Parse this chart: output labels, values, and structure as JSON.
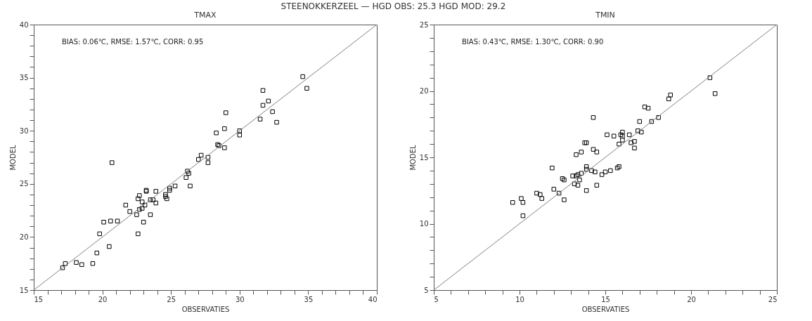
{
  "chart_data": [
    {
      "type": "scatter",
      "title": "STEENOKKERZEEL — HGD OBS: 25.3 HGD MOD: 29.2",
      "subtitle": "TMAX",
      "xlabel": "OBSERVATIES",
      "ylabel": "MODEL",
      "annotations": [
        "BIAS: 0.06℃, RMSE: 1.57℃, CORR: 0.95"
      ],
      "marker": "square",
      "grid": false,
      "xlim": [
        15,
        40
      ],
      "ylim": [
        15,
        40
      ],
      "xticks": [
        15,
        {
          "value": 16,
          "label": null
        },
        {
          "value": 17,
          "label": null
        },
        {
          "value": 18,
          "label": null
        },
        {
          "value": 19,
          "label": null
        },
        20,
        {
          "value": 21,
          "label": null
        },
        {
          "value": 22,
          "label": null
        },
        {
          "value": 23,
          "label": null
        },
        {
          "value": 24,
          "label": null
        },
        25,
        {
          "value": 26,
          "label": null
        },
        {
          "value": 27,
          "label": null
        },
        {
          "value": 28,
          "label": null
        },
        {
          "value": 29,
          "label": null
        },
        30,
        {
          "value": 31,
          "label": null
        },
        {
          "value": 32,
          "label": null
        },
        {
          "value": 33,
          "label": null
        },
        {
          "value": 34,
          "label": null
        },
        35,
        {
          "value": 36,
          "label": null
        },
        {
          "value": 37,
          "label": null
        },
        {
          "value": 38,
          "label": null
        },
        {
          "value": 39,
          "label": null
        },
        40
      ],
      "yticks": [
        15,
        {
          "value": 16,
          "label": null
        },
        {
          "value": 17,
          "label": null
        },
        {
          "value": 18,
          "label": null
        },
        {
          "value": 19,
          "label": null
        },
        20,
        {
          "value": 21,
          "label": null
        },
        {
          "value": 22,
          "label": null
        },
        {
          "value": 23,
          "label": null
        },
        {
          "value": 24,
          "label": null
        },
        25,
        {
          "value": 26,
          "label": null
        },
        {
          "value": 27,
          "label": null
        },
        {
          "value": 28,
          "label": null
        },
        {
          "value": 29,
          "label": null
        },
        30,
        {
          "value": 31,
          "label": null
        },
        {
          "value": 32,
          "label": null
        },
        {
          "value": 33,
          "label": null
        },
        {
          "value": 34,
          "label": null
        },
        35,
        {
          "value": 36,
          "label": null
        },
        {
          "value": 37,
          "label": null
        },
        {
          "value": 38,
          "label": null
        },
        {
          "value": 39,
          "label": null
        },
        40
      ],
      "series": [
        {
          "color": "#000000",
          "x": [
            17.1,
            17.3,
            18.1,
            18.5,
            19.3,
            19.6,
            19.8,
            20.5,
            20.1,
            20.6,
            21.1,
            20.7,
            21.7,
            22.0,
            22.5,
            22.6,
            22.6,
            22.7,
            22.7,
            22.9,
            22.9,
            23.0,
            23.1,
            23.2,
            23.2,
            23.5,
            23.5,
            23.7,
            23.9,
            23.9,
            24.6,
            24.6,
            24.7,
            24.9,
            24.9,
            25.3,
            26.1,
            26.2,
            26.3,
            26.4,
            27.0,
            27.2,
            27.7,
            27.7,
            28.3,
            28.4,
            28.5,
            28.9,
            28.9,
            29.0,
            30.0,
            30.0,
            31.5,
            31.7,
            31.7,
            32.1,
            32.4,
            32.7,
            34.6,
            34.9
          ],
          "values": [
            17.1,
            17.5,
            17.6,
            17.4,
            17.5,
            18.5,
            20.3,
            19.1,
            21.4,
            21.5,
            21.5,
            27.0,
            23.0,
            22.4,
            22.1,
            23.6,
            20.3,
            23.9,
            22.6,
            22.7,
            23.3,
            21.4,
            23.0,
            24.4,
            24.3,
            22.1,
            23.5,
            23.5,
            24.3,
            23.2,
            24.0,
            23.8,
            23.6,
            24.6,
            24.4,
            24.8,
            25.6,
            26.2,
            26.0,
            24.8,
            27.3,
            27.7,
            27.0,
            27.5,
            29.8,
            28.7,
            28.6,
            30.2,
            28.4,
            31.7,
            30.0,
            29.6,
            31.1,
            32.4,
            33.8,
            32.8,
            31.8,
            30.8,
            35.1,
            34.0
          ]
        },
        {
          "type": "line",
          "marker": "none",
          "color": "#808080",
          "x": [
            15,
            40
          ],
          "values": [
            15,
            40
          ]
        }
      ]
    },
    {
      "type": "scatter",
      "subtitle": "TMIN",
      "xlabel": "OBSERVATIES",
      "ylabel": "MODEL",
      "annotations": [
        "BIAS: 0.43℃, RMSE: 1.30℃, CORR: 0.90"
      ],
      "marker": "square",
      "grid": false,
      "xlim": [
        5,
        25
      ],
      "ylim": [
        5,
        25
      ],
      "xticks": [
        5,
        {
          "value": 6,
          "label": null
        },
        {
          "value": 7,
          "label": null
        },
        {
          "value": 8,
          "label": null
        },
        {
          "value": 9,
          "label": null
        },
        10,
        {
          "value": 11,
          "label": null
        },
        {
          "value": 12,
          "label": null
        },
        {
          "value": 13,
          "label": null
        },
        {
          "value": 14,
          "label": null
        },
        15,
        {
          "value": 16,
          "label": null
        },
        {
          "value": 17,
          "label": null
        },
        {
          "value": 18,
          "label": null
        },
        {
          "value": 19,
          "label": null
        },
        20,
        {
          "value": 21,
          "label": null
        },
        {
          "value": 22,
          "label": null
        },
        {
          "value": 23,
          "label": null
        },
        {
          "value": 24,
          "label": null
        },
        25
      ],
      "yticks": [
        5,
        {
          "value": 6,
          "label": null
        },
        {
          "value": 7,
          "label": null
        },
        {
          "value": 8,
          "label": null
        },
        {
          "value": 9,
          "label": null
        },
        10,
        {
          "value": 11,
          "label": null
        },
        {
          "value": 12,
          "label": null
        },
        {
          "value": 13,
          "label": null
        },
        {
          "value": 14,
          "label": null
        },
        15,
        {
          "value": 16,
          "label": null
        },
        {
          "value": 17,
          "label": null
        },
        {
          "value": 18,
          "label": null
        },
        {
          "value": 19,
          "label": null
        },
        20,
        {
          "value": 21,
          "label": null
        },
        {
          "value": 22,
          "label": null
        },
        {
          "value": 23,
          "label": null
        },
        {
          "value": 24,
          "label": null
        },
        25
      ],
      "series": [
        {
          "color": "#000000",
          "x": [
            9.6,
            10.1,
            10.2,
            10.2,
            11.0,
            11.2,
            11.3,
            11.9,
            12.0,
            12.3,
            12.5,
            12.6,
            12.6,
            13.1,
            13.2,
            13.3,
            13.3,
            13.4,
            13.4,
            13.5,
            13.6,
            13.6,
            13.8,
            13.9,
            13.9,
            13.9,
            13.9,
            14.2,
            14.3,
            14.3,
            14.4,
            14.5,
            14.5,
            14.8,
            15.0,
            15.1,
            15.3,
            15.5,
            15.7,
            15.8,
            15.8,
            15.9,
            16.0,
            16.0,
            16.0,
            16.4,
            16.5,
            16.7,
            16.7,
            16.9,
            17.0,
            17.1,
            17.3,
            17.5,
            17.7,
            18.1,
            18.7,
            18.8,
            21.1,
            21.4
          ],
          "values": [
            11.6,
            11.9,
            11.6,
            10.6,
            12.3,
            12.2,
            11.9,
            14.2,
            12.6,
            12.3,
            13.4,
            11.8,
            13.3,
            13.6,
            13.0,
            15.2,
            13.6,
            13.7,
            12.9,
            13.3,
            13.8,
            15.4,
            16.1,
            16.1,
            14.3,
            14.1,
            12.5,
            14.0,
            15.6,
            18.0,
            13.9,
            15.4,
            12.9,
            13.7,
            13.9,
            16.7,
            14.0,
            16.6,
            14.2,
            16.0,
            14.3,
            16.7,
            16.9,
            16.6,
            16.3,
            16.7,
            16.1,
            16.2,
            15.7,
            17.0,
            17.7,
            16.9,
            18.8,
            18.7,
            17.7,
            18.0,
            19.4,
            19.7,
            21.0,
            19.8
          ]
        },
        {
          "type": "line",
          "marker": "none",
          "color": "#808080",
          "x": [
            5,
            25
          ],
          "values": [
            5,
            25
          ]
        }
      ]
    }
  ]
}
